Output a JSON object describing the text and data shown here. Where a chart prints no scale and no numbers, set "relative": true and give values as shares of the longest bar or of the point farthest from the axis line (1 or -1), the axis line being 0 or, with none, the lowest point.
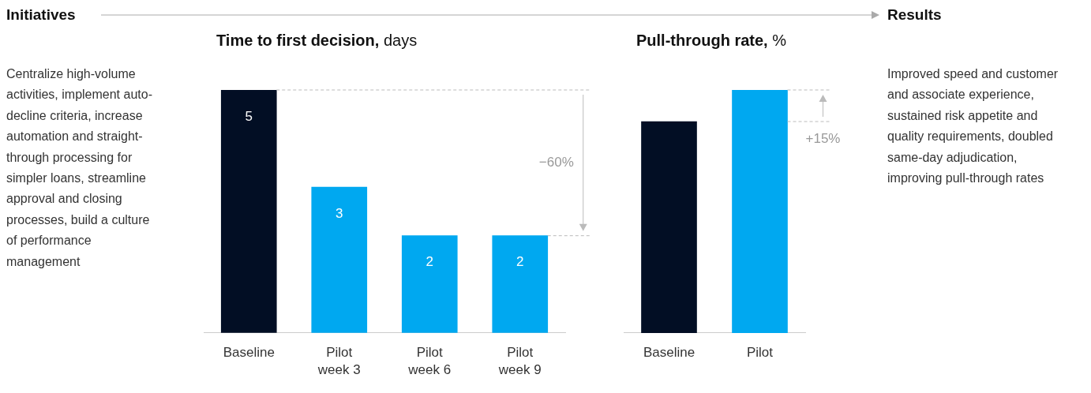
{
  "chart_data": [
    {
      "type": "other",
      "title": "Initiatives",
      "annotations": [
        "Centralize high-volume activities, implement auto-decline criteria, increase automation and straight-through processing for simpler loans, streamline approval and closing processes, build a culture of performance management"
      ]
    },
    {
      "type": "bar",
      "title": "Time to first decision, days",
      "categories": [
        "Baseline",
        "Pilot week 3",
        "Pilot week 6",
        "Pilot week 9"
      ],
      "values": [
        5,
        3,
        2,
        2
      ],
      "colors": [
        "#020e24",
        "#00a8f0",
        "#00a8f0",
        "#00a8f0"
      ],
      "data_labels": true,
      "tick_labels": "x",
      "annotations": [
        "−60%"
      ],
      "ref_lines": [
        {
          "axis": "y",
          "value": 5,
          "color": "#bbbbbb",
          "line_style": "dashed"
        },
        {
          "axis": "y",
          "value": 2,
          "color": "#bbbbbb",
          "line_style": "dashed"
        }
      ]
    },
    {
      "type": "bar",
      "title": "Pull-through rate, %",
      "categories": [
        "Baseline",
        "Pilot"
      ],
      "values": [
        0.87,
        1
      ],
      "colors": [
        "#020e24",
        "#00a8f0"
      ],
      "relative": true,
      "annotations": [
        "+15%"
      ],
      "ref_lines": [
        {
          "axis": "y",
          "value": 0.87,
          "color": "#bbbbbb",
          "line_style": "dashed"
        },
        {
          "axis": "y",
          "value": 1,
          "color": "#bbbbbb",
          "line_style": "dashed"
        }
      ]
    },
    {
      "type": "other",
      "title": "Results",
      "annotations": [
        "Improved speed and customer and associate experience, sustained risk appetite and quality requirements, doubled same-day adjudication, improving pull-through rates"
      ]
    }
  ]
}
